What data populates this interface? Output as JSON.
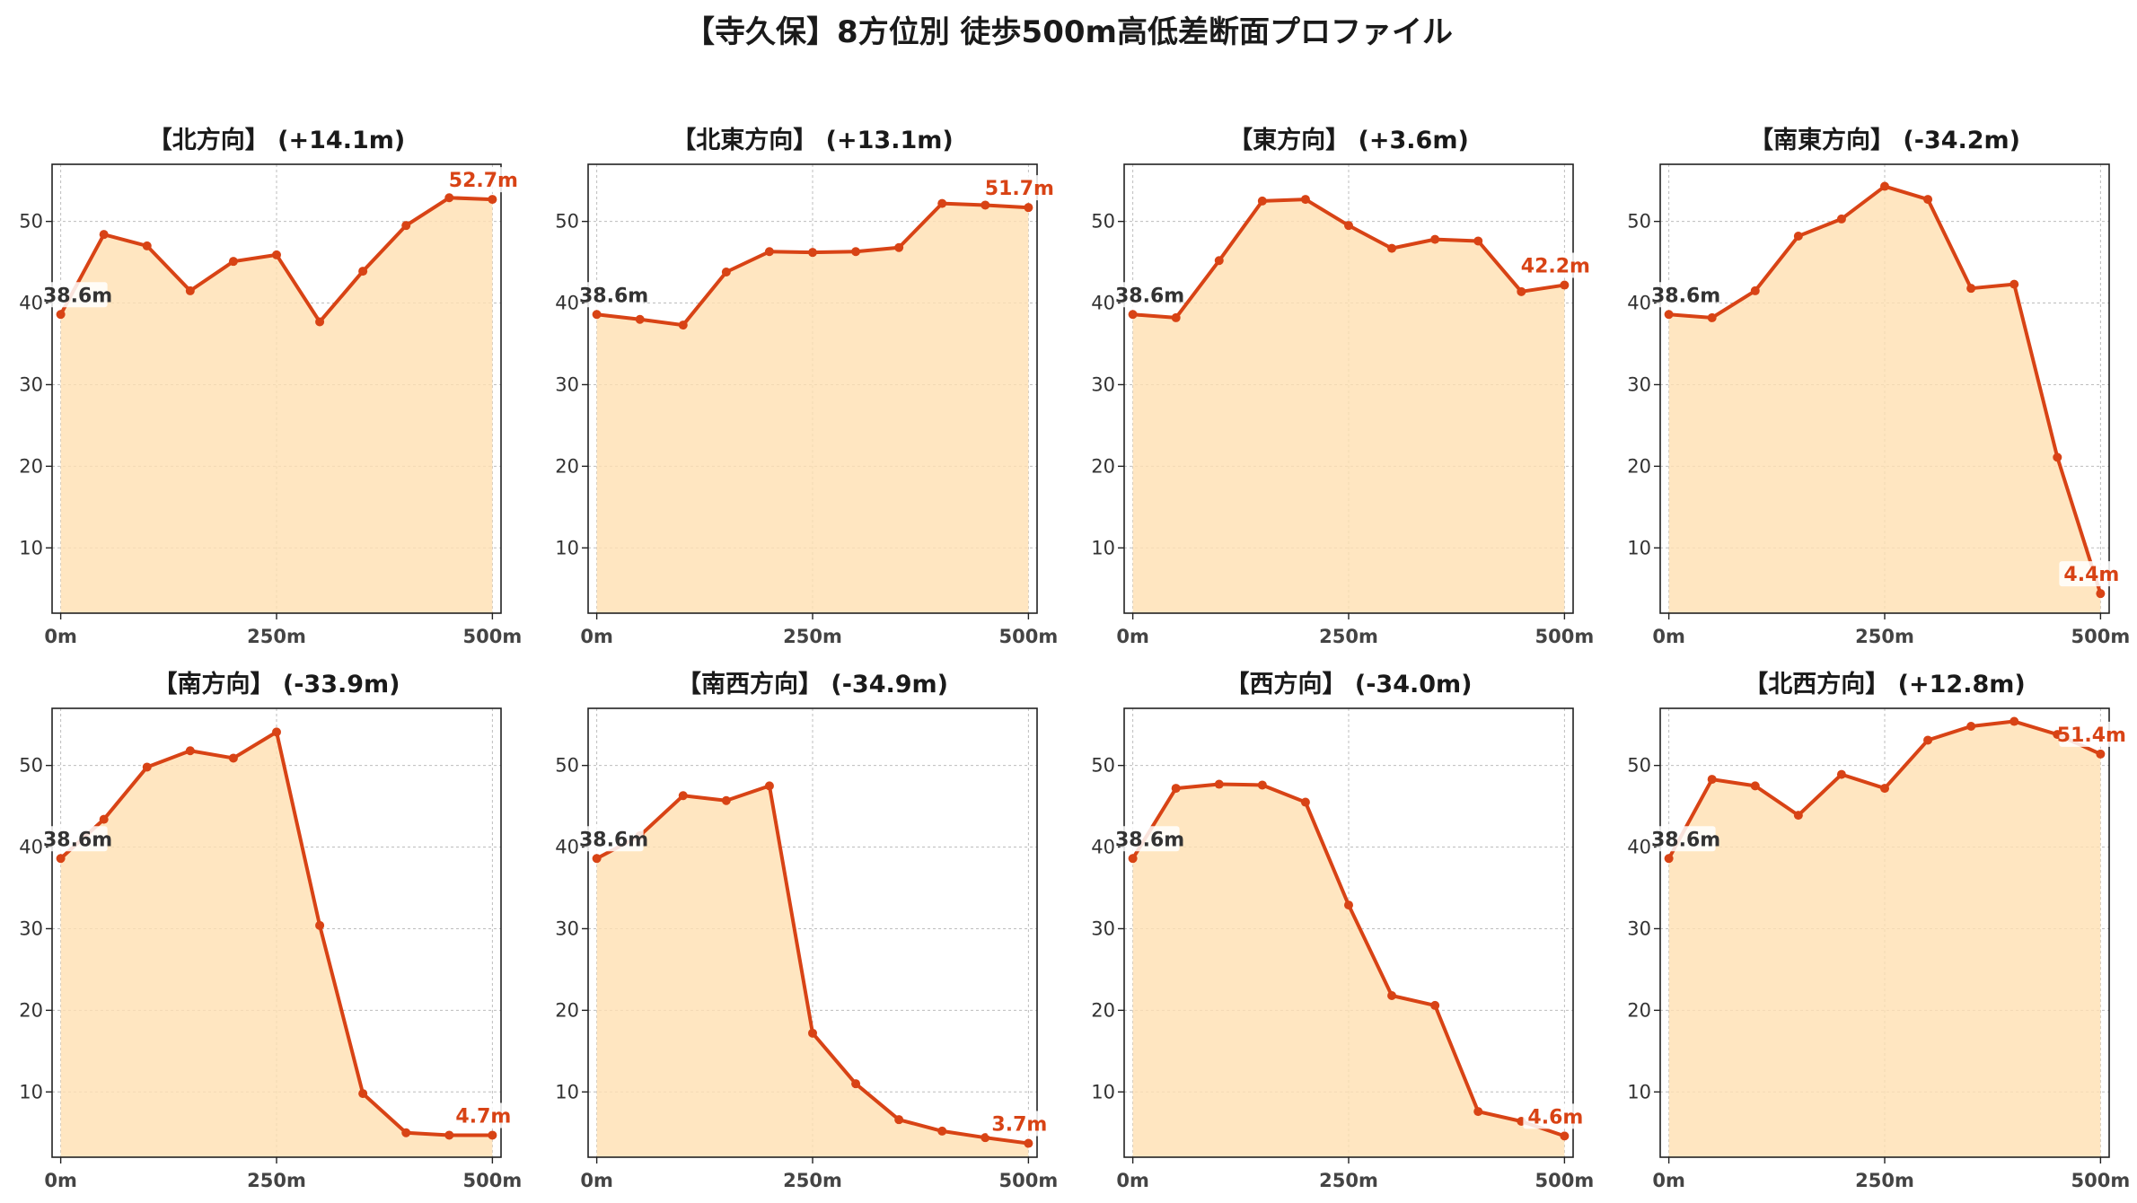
{
  "title": "【寺久保】8方位別 徒歩500m高低差断面プロファイル",
  "colors": {
    "line": "#d84315",
    "fill": "#ffe0b2",
    "start_label": "#333333",
    "end_label": "#d84315",
    "grid": "#bdbdbd"
  },
  "chart_data": [
    {
      "type": "area",
      "title": "【北方向】 (+14.1m)",
      "x_ticks": [
        "0m",
        "250m",
        "500m"
      ],
      "y_ticks": [
        "10",
        "20",
        "30",
        "40",
        "50"
      ],
      "ylim": [
        2,
        57
      ],
      "xlim": [
        -10,
        510
      ],
      "grid": true,
      "x": [
        0,
        50,
        100,
        150,
        200,
        250,
        300,
        350,
        400,
        450,
        500
      ],
      "values": [
        38.6,
        48.4,
        47.0,
        41.5,
        45.1,
        45.9,
        37.7,
        43.9,
        49.5,
        52.9,
        52.7
      ],
      "start_label": "38.6m",
      "end_label": "52.7m"
    },
    {
      "type": "area",
      "title": "【北東方向】 (+13.1m)",
      "x_ticks": [
        "0m",
        "250m",
        "500m"
      ],
      "y_ticks": [
        "10",
        "20",
        "30",
        "40",
        "50"
      ],
      "ylim": [
        2,
        57
      ],
      "xlim": [
        -10,
        510
      ],
      "grid": true,
      "x": [
        0,
        50,
        100,
        150,
        200,
        250,
        300,
        350,
        400,
        450,
        500
      ],
      "values": [
        38.6,
        38.0,
        37.3,
        43.8,
        46.3,
        46.2,
        46.3,
        46.8,
        52.2,
        52.0,
        51.7
      ],
      "start_label": "38.6m",
      "end_label": "51.7m"
    },
    {
      "type": "area",
      "title": "【東方向】 (+3.6m)",
      "x_ticks": [
        "0m",
        "250m",
        "500m"
      ],
      "y_ticks": [
        "10",
        "20",
        "30",
        "40",
        "50"
      ],
      "ylim": [
        2,
        57
      ],
      "xlim": [
        -10,
        510
      ],
      "grid": true,
      "x": [
        0,
        50,
        100,
        150,
        200,
        250,
        300,
        350,
        400,
        450,
        500
      ],
      "values": [
        38.6,
        38.2,
        45.2,
        52.5,
        52.7,
        49.5,
        46.7,
        47.8,
        47.6,
        41.4,
        42.2
      ],
      "start_label": "38.6m",
      "end_label": "42.2m"
    },
    {
      "type": "area",
      "title": "【南東方向】 (-34.2m)",
      "x_ticks": [
        "0m",
        "250m",
        "500m"
      ],
      "y_ticks": [
        "10",
        "20",
        "30",
        "40",
        "50"
      ],
      "ylim": [
        2,
        57
      ],
      "xlim": [
        -10,
        510
      ],
      "grid": true,
      "x": [
        0,
        50,
        100,
        150,
        200,
        250,
        300,
        350,
        400,
        450,
        500
      ],
      "values": [
        38.6,
        38.2,
        41.5,
        48.2,
        50.3,
        54.3,
        52.7,
        41.8,
        42.3,
        21.1,
        4.4
      ],
      "start_label": "38.6m",
      "end_label": "4.4m"
    },
    {
      "type": "area",
      "title": "【南方向】 (-33.9m)",
      "x_ticks": [
        "0m",
        "250m",
        "500m"
      ],
      "y_ticks": [
        "10",
        "20",
        "30",
        "40",
        "50"
      ],
      "ylim": [
        2,
        57
      ],
      "xlim": [
        -10,
        510
      ],
      "grid": true,
      "x": [
        0,
        50,
        100,
        150,
        200,
        250,
        300,
        350,
        400,
        450,
        500
      ],
      "values": [
        38.6,
        43.4,
        49.8,
        51.8,
        50.9,
        54.1,
        30.4,
        9.8,
        5.0,
        4.7,
        4.7
      ],
      "start_label": "38.6m",
      "end_label": "4.7m"
    },
    {
      "type": "area",
      "title": "【南西方向】 (-34.9m)",
      "x_ticks": [
        "0m",
        "250m",
        "500m"
      ],
      "y_ticks": [
        "10",
        "20",
        "30",
        "40",
        "50"
      ],
      "ylim": [
        2,
        57
      ],
      "xlim": [
        -10,
        510
      ],
      "grid": true,
      "x": [
        0,
        50,
        100,
        150,
        200,
        250,
        300,
        350,
        400,
        450,
        500
      ],
      "values": [
        38.6,
        41.4,
        46.3,
        45.7,
        47.5,
        17.2,
        11.0,
        6.6,
        5.2,
        4.4,
        3.7
      ],
      "start_label": "38.6m",
      "end_label": "3.7m"
    },
    {
      "type": "area",
      "title": "【西方向】 (-34.0m)",
      "x_ticks": [
        "0m",
        "250m",
        "500m"
      ],
      "y_ticks": [
        "10",
        "20",
        "30",
        "40",
        "50"
      ],
      "ylim": [
        2,
        57
      ],
      "xlim": [
        -10,
        510
      ],
      "grid": true,
      "x": [
        0,
        50,
        100,
        150,
        200,
        250,
        300,
        350,
        400,
        450,
        500
      ],
      "values": [
        38.6,
        47.2,
        47.7,
        47.6,
        45.5,
        32.9,
        21.8,
        20.6,
        7.6,
        6.4,
        4.6
      ],
      "start_label": "38.6m",
      "end_label": "4.6m"
    },
    {
      "type": "area",
      "title": "【北西方向】 (+12.8m)",
      "x_ticks": [
        "0m",
        "250m",
        "500m"
      ],
      "y_ticks": [
        "10",
        "20",
        "30",
        "40",
        "50"
      ],
      "ylim": [
        2,
        57
      ],
      "xlim": [
        -10,
        510
      ],
      "grid": true,
      "x": [
        0,
        50,
        100,
        150,
        200,
        250,
        300,
        350,
        400,
        450,
        500
      ],
      "values": [
        38.6,
        48.3,
        47.5,
        43.9,
        48.9,
        47.2,
        53.1,
        54.8,
        55.4,
        53.8,
        51.4
      ],
      "start_label": "38.6m",
      "end_label": "51.4m"
    }
  ]
}
